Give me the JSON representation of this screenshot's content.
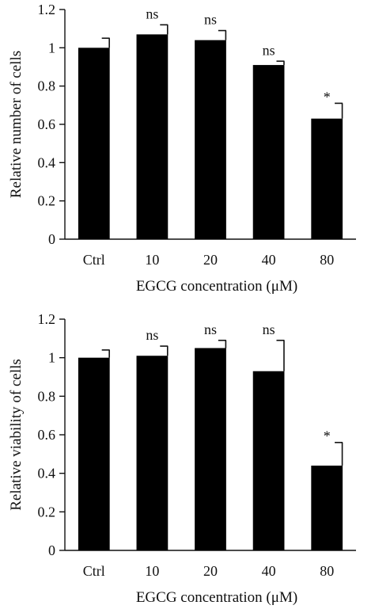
{
  "chart_data": [
    {
      "type": "bar",
      "categories": [
        "Ctrl",
        "10",
        "20",
        "40",
        "80"
      ],
      "values": [
        1.0,
        1.07,
        1.04,
        0.91,
        0.63
      ],
      "errors": [
        0.05,
        0.05,
        0.05,
        0.02,
        0.08
      ],
      "significance": [
        "",
        "ns",
        "ns",
        "ns",
        "*"
      ],
      "xlabel": "EGCG concentration (μM)",
      "ylabel": "Relative number of cells",
      "ylim": [
        0,
        1.2
      ],
      "yticks": [
        "0",
        "0.2",
        "0.4",
        "0.6",
        "0.8",
        "1",
        "1.2"
      ],
      "grid": false,
      "bar_color": "#000000"
    },
    {
      "type": "bar",
      "categories": [
        "Ctrl",
        "10",
        "20",
        "40",
        "80"
      ],
      "values": [
        1.0,
        1.01,
        1.05,
        0.93,
        0.44
      ],
      "errors": [
        0.04,
        0.05,
        0.04,
        0.16,
        0.12
      ],
      "significance": [
        "",
        "ns",
        "ns",
        "ns",
        "*"
      ],
      "xlabel": "EGCG concentration (μM)",
      "ylabel": "Relative viability of cells",
      "ylim": [
        0,
        1.2
      ],
      "yticks": [
        "0",
        "0.2",
        "0.4",
        "0.6",
        "0.8",
        "1",
        "1.2"
      ],
      "grid": false,
      "bar_color": "#000000"
    }
  ]
}
